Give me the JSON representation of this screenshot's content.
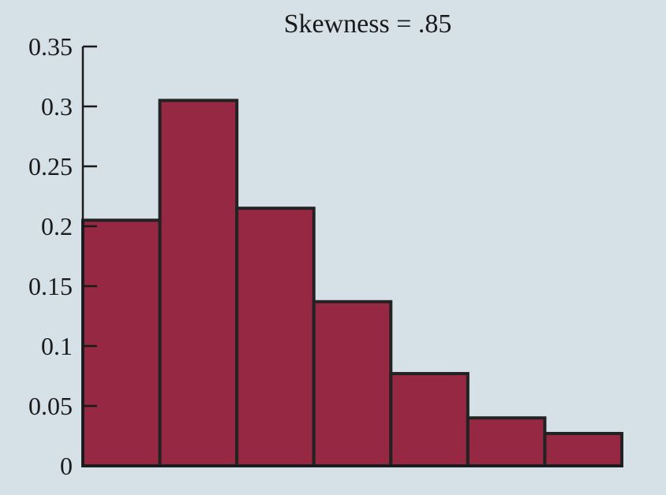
{
  "chart_data": {
    "type": "bar",
    "title": "Skewness = .85",
    "xlabel": "",
    "ylabel": "",
    "ylim": [
      0,
      0.35
    ],
    "yticks": [
      {
        "value": 0,
        "label": "0"
      },
      {
        "value": 0.05,
        "label": "0.05"
      },
      {
        "value": 0.1,
        "label": "0.1"
      },
      {
        "value": 0.15,
        "label": "0.15"
      },
      {
        "value": 0.2,
        "label": "0.2"
      },
      {
        "value": 0.25,
        "label": "0.25"
      },
      {
        "value": 0.3,
        "label": "0.3"
      },
      {
        "value": 0.35,
        "label": "0.35"
      }
    ],
    "values": [
      0.205,
      0.305,
      0.215,
      0.137,
      0.077,
      0.04,
      0.027
    ],
    "grid": false,
    "colors": {
      "bar": "#962843",
      "bar_edge": "#222222",
      "background": "#d6e0e7"
    }
  }
}
